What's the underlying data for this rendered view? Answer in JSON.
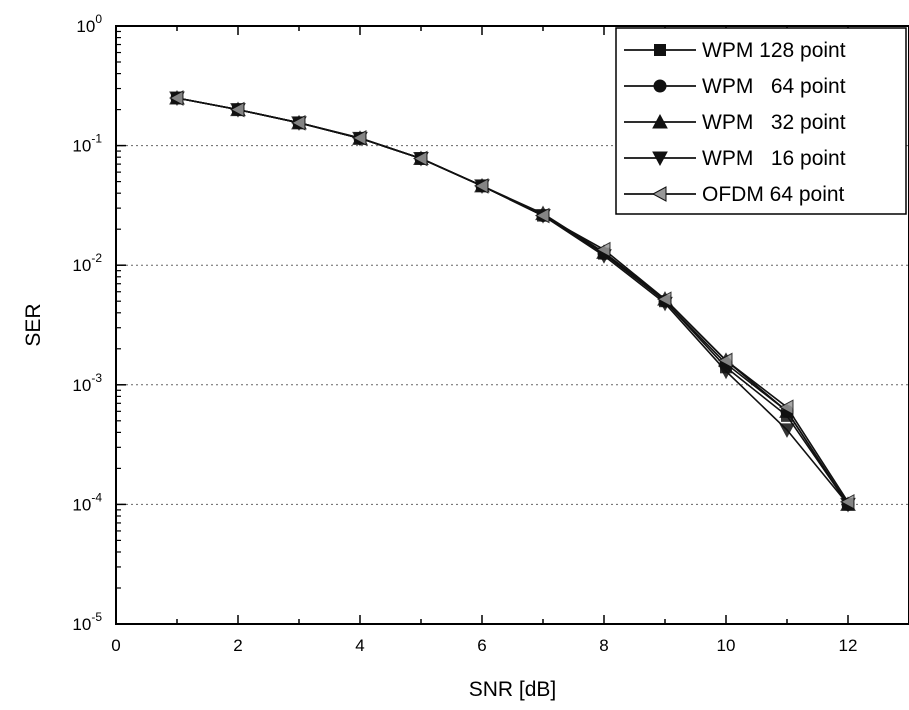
{
  "chart_data": {
    "type": "line",
    "title": "",
    "xlabel": "SNR [dB]",
    "ylabel": "SER",
    "xlim": [
      0,
      13
    ],
    "ylim": [
      1e-05,
      1
    ],
    "yscale": "log",
    "grid": "horizontal-dotted",
    "legend_position": "top-right",
    "x_ticks": [
      0,
      2,
      4,
      6,
      8,
      10,
      12
    ],
    "y_ticks": [
      {
        "value": 1,
        "mantissa": "10",
        "exp": "0"
      },
      {
        "value": 0.1,
        "mantissa": "10",
        "exp": "-1"
      },
      {
        "value": 0.01,
        "mantissa": "10",
        "exp": "-2"
      },
      {
        "value": 0.001,
        "mantissa": "10",
        "exp": "-3"
      },
      {
        "value": 0.0001,
        "mantissa": "10",
        "exp": "-4"
      },
      {
        "value": 1e-05,
        "mantissa": "10",
        "exp": "-5"
      }
    ],
    "x": [
      1,
      2,
      3,
      4,
      5,
      6,
      7,
      8,
      9,
      10,
      11,
      12
    ],
    "series": [
      {
        "name": "WPM 128 point",
        "marker": "square",
        "values": [
          0.25,
          0.2,
          0.155,
          0.115,
          0.078,
          0.046,
          0.026,
          0.0125,
          0.005,
          0.0014,
          0.00055,
          0.0001
        ]
      },
      {
        "name": "WPM   64 point",
        "marker": "circle",
        "values": [
          0.25,
          0.2,
          0.155,
          0.115,
          0.078,
          0.046,
          0.026,
          0.0125,
          0.005,
          0.0015,
          0.0006,
          0.0001
        ]
      },
      {
        "name": "WPM   32 point",
        "marker": "triangle-up",
        "values": [
          0.25,
          0.2,
          0.155,
          0.115,
          0.078,
          0.046,
          0.027,
          0.0128,
          0.0052,
          0.0016,
          0.0006,
          0.0001
        ]
      },
      {
        "name": "WPM   16 point",
        "marker": "triangle-down",
        "values": [
          0.25,
          0.2,
          0.155,
          0.115,
          0.078,
          0.046,
          0.026,
          0.012,
          0.0048,
          0.0013,
          0.00042,
          0.0001
        ]
      },
      {
        "name": "OFDM 64 point",
        "marker": "triangle-left",
        "values": [
          0.25,
          0.2,
          0.155,
          0.116,
          0.078,
          0.046,
          0.026,
          0.0135,
          0.0052,
          0.0016,
          0.00065,
          0.000105
        ]
      }
    ]
  }
}
